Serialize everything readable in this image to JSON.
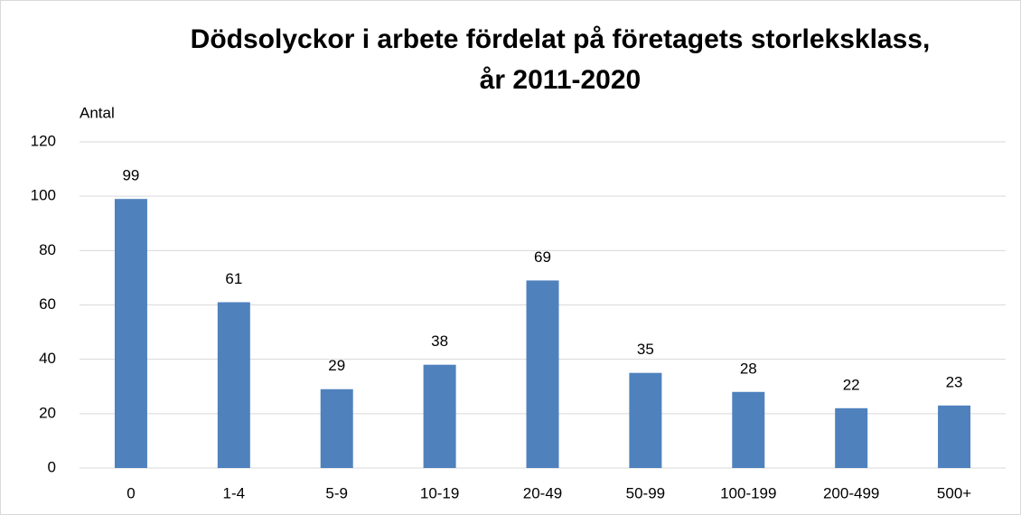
{
  "chart_data": {
    "type": "bar",
    "title": [
      "Dödsolyckor i arbete fördelat på företagets storleksklass,",
      "år 2011-2020"
    ],
    "y_label": "Antal",
    "categories": [
      "0",
      "1-4",
      "5-9",
      "10-19",
      "20-49",
      "50-99",
      "100-199",
      "200-499",
      "500+"
    ],
    "values": [
      99,
      61,
      29,
      38,
      69,
      35,
      28,
      22,
      23
    ],
    "color": "#4f81bd",
    "ylim": [
      0,
      120
    ],
    "yticks": [
      0,
      20,
      40,
      60,
      80,
      100,
      120
    ],
    "grid": true
  }
}
